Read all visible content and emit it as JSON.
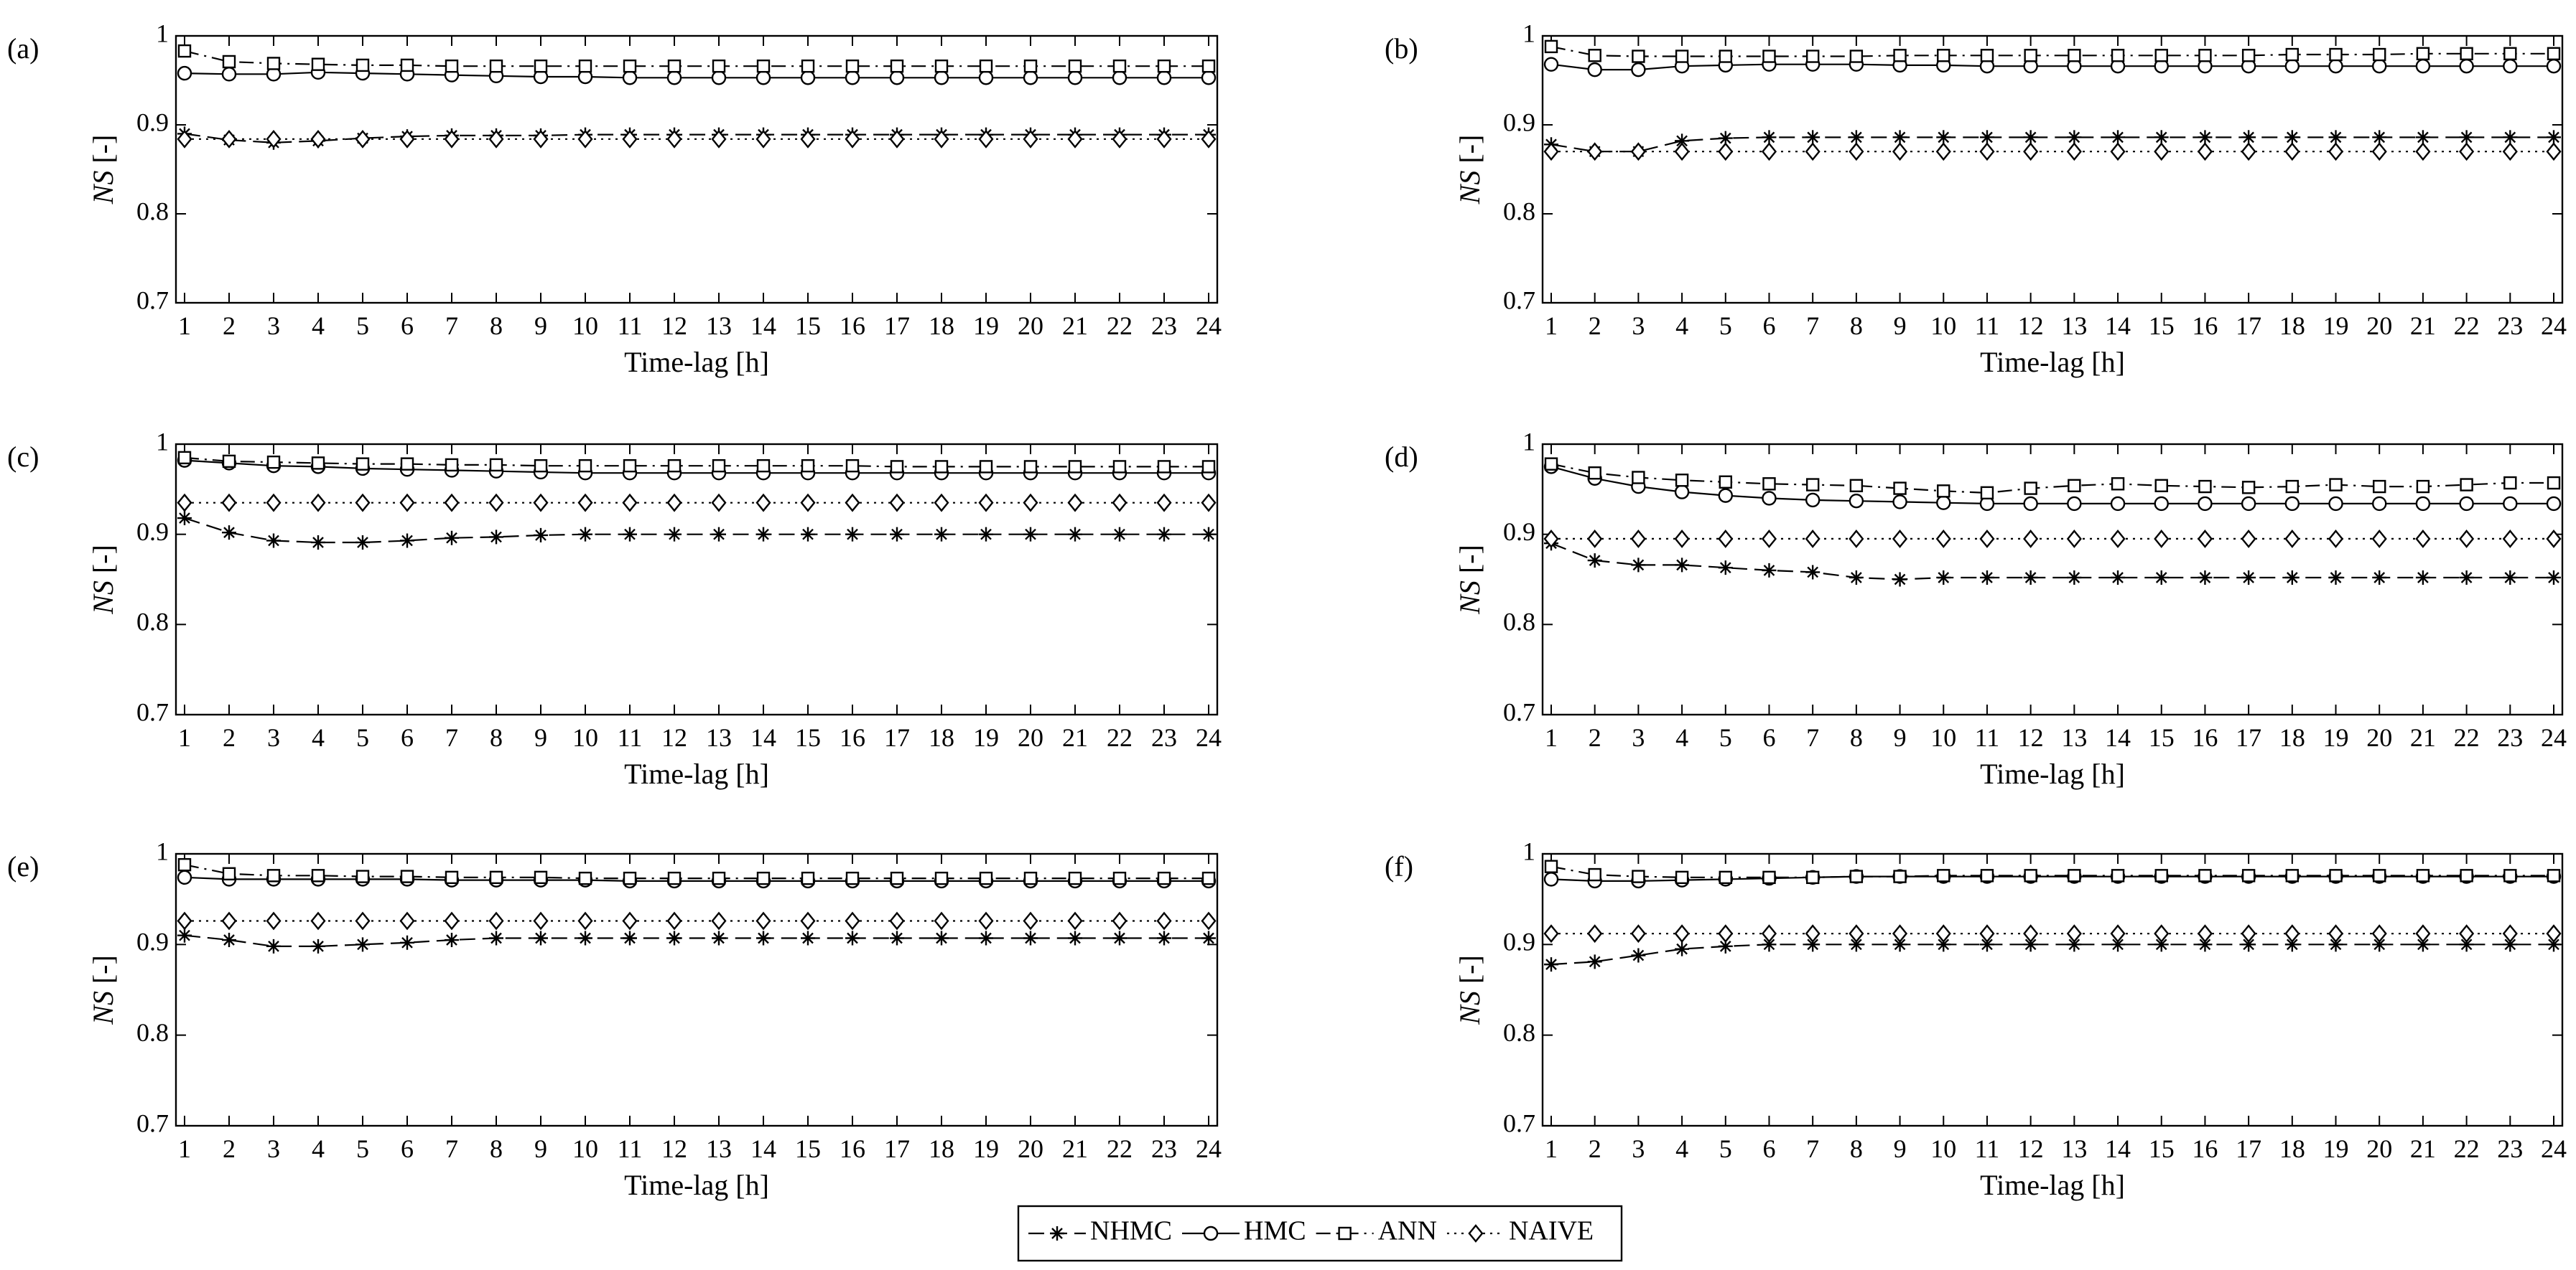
{
  "chart_data": [
    {
      "type": "line",
      "panel_label": "(a)",
      "xlabel": "Time-lag [h]",
      "ylabel_italic": "NS",
      "ylabel_unit": "[-]",
      "ylim": [
        0.7,
        1.0
      ],
      "yticks": [
        "0.7",
        "0.8",
        "0.9",
        "1"
      ],
      "x": [
        1,
        2,
        3,
        4,
        5,
        6,
        7,
        8,
        9,
        10,
        11,
        12,
        13,
        14,
        15,
        16,
        17,
        18,
        19,
        20,
        21,
        22,
        23,
        24
      ],
      "series": [
        {
          "name": "NHMC",
          "values": [
            0.89,
            0.883,
            0.88,
            0.882,
            0.885,
            0.887,
            0.888,
            0.888,
            0.888,
            0.889,
            0.889,
            0.889,
            0.889,
            0.889,
            0.889,
            0.889,
            0.889,
            0.889,
            0.889,
            0.889,
            0.889,
            0.889,
            0.889,
            0.889
          ]
        },
        {
          "name": "HMC",
          "values": [
            0.958,
            0.957,
            0.957,
            0.959,
            0.958,
            0.957,
            0.956,
            0.955,
            0.954,
            0.954,
            0.953,
            0.953,
            0.953,
            0.953,
            0.953,
            0.953,
            0.953,
            0.953,
            0.953,
            0.953,
            0.953,
            0.953,
            0.953,
            0.953
          ]
        },
        {
          "name": "ANN",
          "values": [
            0.983,
            0.971,
            0.969,
            0.968,
            0.967,
            0.967,
            0.966,
            0.966,
            0.966,
            0.966,
            0.966,
            0.966,
            0.966,
            0.966,
            0.966,
            0.966,
            0.966,
            0.966,
            0.966,
            0.966,
            0.966,
            0.966,
            0.966,
            0.966
          ]
        },
        {
          "name": "NAIVE",
          "values": [
            0.884,
            0.884,
            0.884,
            0.884,
            0.884,
            0.884,
            0.884,
            0.884,
            0.884,
            0.884,
            0.884,
            0.884,
            0.884,
            0.884,
            0.884,
            0.884,
            0.884,
            0.884,
            0.884,
            0.884,
            0.884,
            0.884,
            0.884,
            0.884
          ]
        }
      ]
    },
    {
      "type": "line",
      "panel_label": "(b)",
      "xlabel": "Time-lag [h]",
      "ylabel_italic": "NS",
      "ylabel_unit": "[-]",
      "ylim": [
        0.7,
        1.0
      ],
      "yticks": [
        "0.7",
        "0.8",
        "0.9",
        "1"
      ],
      "x": [
        1,
        2,
        3,
        4,
        5,
        6,
        7,
        8,
        9,
        10,
        11,
        12,
        13,
        14,
        15,
        16,
        17,
        18,
        19,
        20,
        21,
        22,
        23,
        24
      ],
      "series": [
        {
          "name": "NHMC",
          "values": [
            0.878,
            0.87,
            0.87,
            0.882,
            0.885,
            0.886,
            0.886,
            0.886,
            0.886,
            0.886,
            0.886,
            0.886,
            0.886,
            0.886,
            0.886,
            0.886,
            0.886,
            0.886,
            0.886,
            0.886,
            0.886,
            0.886,
            0.886,
            0.886
          ]
        },
        {
          "name": "HMC",
          "values": [
            0.968,
            0.962,
            0.962,
            0.966,
            0.967,
            0.968,
            0.968,
            0.968,
            0.967,
            0.967,
            0.966,
            0.966,
            0.966,
            0.966,
            0.966,
            0.966,
            0.966,
            0.966,
            0.966,
            0.966,
            0.966,
            0.966,
            0.966,
            0.966
          ]
        },
        {
          "name": "ANN",
          "values": [
            0.988,
            0.978,
            0.977,
            0.977,
            0.977,
            0.977,
            0.977,
            0.977,
            0.978,
            0.978,
            0.978,
            0.978,
            0.978,
            0.978,
            0.978,
            0.978,
            0.978,
            0.979,
            0.979,
            0.979,
            0.98,
            0.98,
            0.98,
            0.98
          ]
        },
        {
          "name": "NAIVE",
          "values": [
            0.87,
            0.87,
            0.87,
            0.87,
            0.87,
            0.87,
            0.87,
            0.87,
            0.87,
            0.87,
            0.87,
            0.87,
            0.87,
            0.87,
            0.87,
            0.87,
            0.87,
            0.87,
            0.87,
            0.87,
            0.87,
            0.87,
            0.87,
            0.87
          ]
        }
      ]
    },
    {
      "type": "line",
      "panel_label": "(c)",
      "xlabel": "Time-lag [h]",
      "ylabel_italic": "NS",
      "ylabel_unit": "[-]",
      "ylim": [
        0.7,
        1.0
      ],
      "yticks": [
        "0.7",
        "0.8",
        "0.9",
        "1"
      ],
      "x": [
        1,
        2,
        3,
        4,
        5,
        6,
        7,
        8,
        9,
        10,
        11,
        12,
        13,
        14,
        15,
        16,
        17,
        18,
        19,
        20,
        21,
        22,
        23,
        24
      ],
      "series": [
        {
          "name": "NHMC",
          "values": [
            0.918,
            0.902,
            0.893,
            0.891,
            0.891,
            0.893,
            0.896,
            0.897,
            0.899,
            0.9,
            0.9,
            0.9,
            0.9,
            0.9,
            0.9,
            0.9,
            0.9,
            0.9,
            0.9,
            0.9,
            0.9,
            0.9,
            0.9,
            0.9
          ]
        },
        {
          "name": "HMC",
          "values": [
            0.982,
            0.979,
            0.976,
            0.975,
            0.973,
            0.972,
            0.971,
            0.97,
            0.969,
            0.968,
            0.968,
            0.968,
            0.968,
            0.968,
            0.968,
            0.968,
            0.968,
            0.968,
            0.968,
            0.968,
            0.968,
            0.968,
            0.968,
            0.968
          ]
        },
        {
          "name": "ANN",
          "values": [
            0.985,
            0.981,
            0.98,
            0.979,
            0.978,
            0.978,
            0.977,
            0.977,
            0.976,
            0.976,
            0.976,
            0.976,
            0.976,
            0.976,
            0.976,
            0.976,
            0.975,
            0.975,
            0.975,
            0.975,
            0.975,
            0.975,
            0.975,
            0.975
          ]
        },
        {
          "name": "NAIVE",
          "values": [
            0.935,
            0.935,
            0.935,
            0.935,
            0.935,
            0.935,
            0.935,
            0.935,
            0.935,
            0.935,
            0.935,
            0.935,
            0.935,
            0.935,
            0.935,
            0.935,
            0.935,
            0.935,
            0.935,
            0.935,
            0.935,
            0.935,
            0.935,
            0.935
          ]
        }
      ]
    },
    {
      "type": "line",
      "panel_label": "(d)",
      "xlabel": "Time-lag [h]",
      "ylabel_italic": "NS",
      "ylabel_unit": "[-]",
      "ylim": [
        0.7,
        1.0
      ],
      "yticks": [
        "0.7",
        "0.8",
        "0.9",
        "1"
      ],
      "x": [
        1,
        2,
        3,
        4,
        5,
        6,
        7,
        8,
        9,
        10,
        11,
        12,
        13,
        14,
        15,
        16,
        17,
        18,
        19,
        20,
        21,
        22,
        23,
        24
      ],
      "series": [
        {
          "name": "NHMC",
          "values": [
            0.89,
            0.871,
            0.866,
            0.866,
            0.863,
            0.86,
            0.858,
            0.852,
            0.85,
            0.852,
            0.852,
            0.852,
            0.852,
            0.852,
            0.852,
            0.852,
            0.852,
            0.852,
            0.852,
            0.852,
            0.852,
            0.852,
            0.852,
            0.852
          ]
        },
        {
          "name": "HMC",
          "values": [
            0.975,
            0.962,
            0.953,
            0.947,
            0.943,
            0.94,
            0.938,
            0.937,
            0.936,
            0.935,
            0.934,
            0.934,
            0.934,
            0.934,
            0.934,
            0.934,
            0.934,
            0.934,
            0.934,
            0.934,
            0.934,
            0.934,
            0.934,
            0.934
          ]
        },
        {
          "name": "ANN",
          "values": [
            0.978,
            0.968,
            0.963,
            0.96,
            0.958,
            0.956,
            0.955,
            0.954,
            0.951,
            0.948,
            0.946,
            0.951,
            0.954,
            0.956,
            0.954,
            0.953,
            0.952,
            0.953,
            0.955,
            0.953,
            0.953,
            0.955,
            0.957,
            0.957
          ]
        },
        {
          "name": "NAIVE",
          "values": [
            0.895,
            0.895,
            0.895,
            0.895,
            0.895,
            0.895,
            0.895,
            0.895,
            0.895,
            0.895,
            0.895,
            0.895,
            0.895,
            0.895,
            0.895,
            0.895,
            0.895,
            0.895,
            0.895,
            0.895,
            0.895,
            0.895,
            0.895,
            0.895
          ]
        }
      ]
    },
    {
      "type": "line",
      "panel_label": "(e)",
      "xlabel": "Time-lag [h]",
      "ylabel_italic": "NS",
      "ylabel_unit": "[-]",
      "ylim": [
        0.7,
        1.0
      ],
      "yticks": [
        "0.7",
        "0.8",
        "0.9",
        "1"
      ],
      "x": [
        1,
        2,
        3,
        4,
        5,
        6,
        7,
        8,
        9,
        10,
        11,
        12,
        13,
        14,
        15,
        16,
        17,
        18,
        19,
        20,
        21,
        22,
        23,
        24
      ],
      "series": [
        {
          "name": "NHMC",
          "values": [
            0.91,
            0.905,
            0.898,
            0.898,
            0.9,
            0.902,
            0.905,
            0.907,
            0.907,
            0.907,
            0.907,
            0.907,
            0.907,
            0.907,
            0.907,
            0.907,
            0.907,
            0.907,
            0.907,
            0.907,
            0.907,
            0.907,
            0.907,
            0.907
          ]
        },
        {
          "name": "HMC",
          "values": [
            0.974,
            0.972,
            0.972,
            0.972,
            0.972,
            0.972,
            0.971,
            0.971,
            0.971,
            0.971,
            0.97,
            0.97,
            0.97,
            0.97,
            0.97,
            0.97,
            0.97,
            0.97,
            0.97,
            0.97,
            0.97,
            0.97,
            0.97,
            0.97
          ]
        },
        {
          "name": "ANN",
          "values": [
            0.988,
            0.978,
            0.976,
            0.976,
            0.975,
            0.975,
            0.974,
            0.974,
            0.974,
            0.973,
            0.973,
            0.973,
            0.973,
            0.973,
            0.973,
            0.973,
            0.973,
            0.973,
            0.973,
            0.973,
            0.973,
            0.973,
            0.973,
            0.973
          ]
        },
        {
          "name": "NAIVE",
          "values": [
            0.926,
            0.926,
            0.926,
            0.926,
            0.926,
            0.926,
            0.926,
            0.926,
            0.926,
            0.926,
            0.926,
            0.926,
            0.926,
            0.926,
            0.926,
            0.926,
            0.926,
            0.926,
            0.926,
            0.926,
            0.926,
            0.926,
            0.926,
            0.926
          ]
        }
      ]
    },
    {
      "type": "line",
      "panel_label": "(f)",
      "xlabel": "Time-lag [h]",
      "ylabel_italic": "NS",
      "ylabel_unit": "[-]",
      "ylim": [
        0.7,
        1.0
      ],
      "yticks": [
        "0.7",
        "0.8",
        "0.9",
        "1"
      ],
      "x": [
        1,
        2,
        3,
        4,
        5,
        6,
        7,
        8,
        9,
        10,
        11,
        12,
        13,
        14,
        15,
        16,
        17,
        18,
        19,
        20,
        21,
        22,
        23,
        24
      ],
      "series": [
        {
          "name": "NHMC",
          "values": [
            0.878,
            0.881,
            0.888,
            0.895,
            0.898,
            0.9,
            0.9,
            0.9,
            0.9,
            0.9,
            0.9,
            0.9,
            0.9,
            0.9,
            0.9,
            0.9,
            0.9,
            0.9,
            0.9,
            0.9,
            0.9,
            0.9,
            0.9,
            0.9
          ]
        },
        {
          "name": "HMC",
          "values": [
            0.972,
            0.97,
            0.97,
            0.971,
            0.972,
            0.973,
            0.974,
            0.975,
            0.975,
            0.975,
            0.975,
            0.975,
            0.975,
            0.975,
            0.975,
            0.975,
            0.975,
            0.975,
            0.975,
            0.975,
            0.975,
            0.975,
            0.975,
            0.975
          ]
        },
        {
          "name": "ANN",
          "values": [
            0.986,
            0.977,
            0.975,
            0.974,
            0.974,
            0.974,
            0.974,
            0.975,
            0.975,
            0.976,
            0.976,
            0.976,
            0.976,
            0.976,
            0.976,
            0.976,
            0.976,
            0.976,
            0.976,
            0.976,
            0.976,
            0.976,
            0.976,
            0.976
          ]
        },
        {
          "name": "NAIVE",
          "values": [
            0.912,
            0.912,
            0.912,
            0.912,
            0.912,
            0.912,
            0.912,
            0.912,
            0.912,
            0.912,
            0.912,
            0.912,
            0.912,
            0.912,
            0.912,
            0.912,
            0.912,
            0.912,
            0.912,
            0.912,
            0.912,
            0.912,
            0.912,
            0.912
          ]
        }
      ]
    }
  ],
  "legend": {
    "placement": "bottom-center",
    "items": [
      {
        "name": "NHMC",
        "dash": "dashed",
        "marker": "asterisk"
      },
      {
        "name": "HMC",
        "dash": "solid",
        "marker": "circle"
      },
      {
        "name": "ANN",
        "dash": "dashdot",
        "marker": "square"
      },
      {
        "name": "NAIVE",
        "dash": "dotted",
        "marker": "diamond"
      }
    ]
  }
}
